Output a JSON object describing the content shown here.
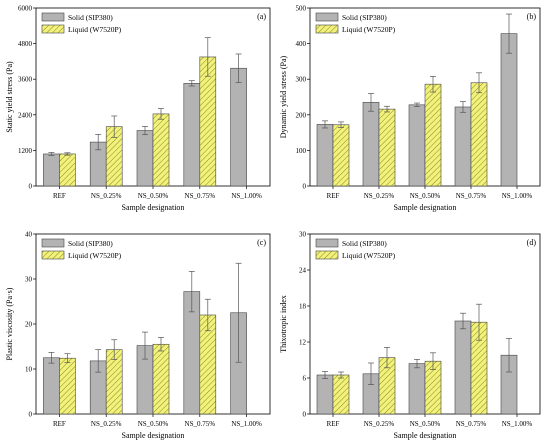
{
  "chart_data": [
    {
      "type": "bar",
      "panel_label": "(a)",
      "xlabel": "Sample designation",
      "ylabel": "Static yield stress (Pa)",
      "ylim": [
        0,
        6000
      ],
      "yticks": [
        0,
        1200,
        2400,
        3600,
        4800,
        6000
      ],
      "categories": [
        "REF",
        "NS_0.25%",
        "NS_0.50%",
        "NS_0.75%",
        "NS_1.00%"
      ],
      "legend_position": "top-left",
      "series": [
        {
          "name": "Solid (SIP380)",
          "values": [
            1080,
            1480,
            1870,
            3460,
            3970
          ],
          "errors": [
            50,
            260,
            140,
            90,
            480
          ]
        },
        {
          "name": "Liquid (W7520P)",
          "values": [
            1080,
            2000,
            2430,
            4350,
            null
          ],
          "errors": [
            40,
            360,
            180,
            650,
            null
          ]
        }
      ]
    },
    {
      "type": "bar",
      "panel_label": "(b)",
      "xlabel": "Sample designation",
      "ylabel": "Dynamic yield stress (Pa)",
      "ylim": [
        0,
        500
      ],
      "yticks": [
        0,
        100,
        200,
        300,
        400,
        500
      ],
      "categories": [
        "REF",
        "NS_0.25%",
        "NS_0.50%",
        "NS_0.75%",
        "NS_1.00%"
      ],
      "legend_position": "top-left",
      "series": [
        {
          "name": "Solid (SIP380)",
          "values": [
            173,
            235,
            228,
            222,
            428
          ],
          "errors": [
            10,
            25,
            5,
            15,
            55
          ]
        },
        {
          "name": "Liquid (W7520P)",
          "values": [
            172,
            216,
            286,
            290,
            null
          ],
          "errors": [
            8,
            8,
            22,
            28,
            null
          ]
        }
      ]
    },
    {
      "type": "bar",
      "panel_label": "(c)",
      "xlabel": "Sample designation",
      "ylabel": "Plastic viscosity (Pa·s)",
      "ylim": [
        0,
        40
      ],
      "yticks": [
        0,
        10,
        20,
        30,
        40
      ],
      "categories": [
        "REF",
        "NS_0.25%",
        "NS_0.50%",
        "NS_0.75%",
        "NS_1.00%"
      ],
      "legend_position": "top-left",
      "series": [
        {
          "name": "Solid (SIP380)",
          "values": [
            12.5,
            11.8,
            15.2,
            27.2,
            22.5
          ],
          "errors": [
            1.2,
            2.5,
            3.0,
            4.5,
            11.0
          ]
        },
        {
          "name": "Liquid (W7520P)",
          "values": [
            12.4,
            14.3,
            15.5,
            22.0,
            null
          ],
          "errors": [
            1.0,
            2.2,
            1.5,
            3.5,
            null
          ]
        }
      ]
    },
    {
      "type": "bar",
      "panel_label": "(d)",
      "xlabel": "Sample designation",
      "ylabel": "Thixotropic index",
      "ylim": [
        0,
        30
      ],
      "yticks": [
        0,
        6,
        12,
        18,
        24,
        30
      ],
      "categories": [
        "REF",
        "NS_0.25%",
        "NS_0.50%",
        "NS_0.75%",
        "NS_1.00%"
      ],
      "legend_position": "top-left",
      "series": [
        {
          "name": "Solid (SIP380)",
          "values": [
            6.5,
            6.7,
            8.4,
            15.5,
            9.8
          ],
          "errors": [
            0.6,
            1.8,
            0.7,
            1.3,
            2.8
          ]
        },
        {
          "name": "Liquid (W7520P)",
          "values": [
            6.5,
            9.4,
            8.8,
            15.3,
            null
          ],
          "errors": [
            0.5,
            1.7,
            1.4,
            3.0,
            null
          ]
        }
      ]
    }
  ],
  "colors": {
    "solid": "#b3b3b3",
    "liquid": "#f2f27a",
    "hatch": "#6b6b1a",
    "axis": "#000000"
  }
}
